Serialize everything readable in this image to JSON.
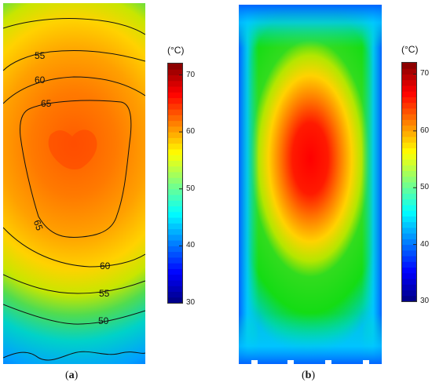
{
  "chart_data": [
    {
      "type": "heatmap",
      "panel_label": "a",
      "colorbar": {
        "unit": "(°C)",
        "min": 30,
        "max": 72,
        "ticks": [
          30,
          40,
          50,
          60,
          70
        ],
        "colormap": "jet"
      },
      "contours": [
        {
          "level": 50,
          "label": "50"
        },
        {
          "level": 55,
          "label": "55"
        },
        {
          "level": 60,
          "label": "60"
        },
        {
          "level": 65,
          "label": "65"
        }
      ],
      "peak_value": 68,
      "edge_value": 45
    },
    {
      "type": "heatmap",
      "panel_label": "b",
      "colorbar": {
        "unit": "(°C)",
        "min": 30,
        "max": 72,
        "ticks": [
          30,
          40,
          50,
          60,
          70
        ],
        "colormap": "jet"
      },
      "peak_value": 72,
      "edge_value": 43
    }
  ],
  "captions": {
    "a_open": "(",
    "a_letter": "a",
    "a_close": ")",
    "b_open": "(",
    "b_letter": "b",
    "b_close": ")"
  },
  "colors": {
    "contour_line": "#111111",
    "stops": [
      "#0000b4",
      "#0050ff",
      "#00c8ff",
      "#00e6b4",
      "#00dc32",
      "#96e600",
      "#ffeb00",
      "#ffa000",
      "#ff5a00",
      "#e60000"
    ]
  }
}
